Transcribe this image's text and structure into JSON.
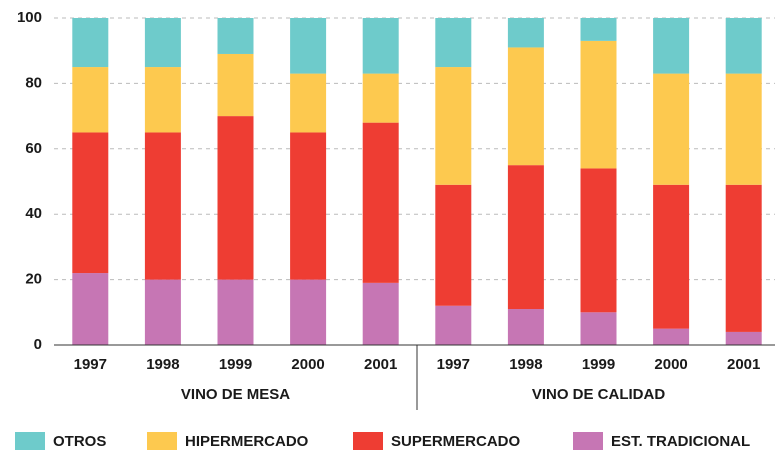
{
  "chart_data": {
    "type": "stacked_bar",
    "categories": [
      "1997",
      "1998",
      "1999",
      "2000",
      "2001",
      "1997",
      "1998",
      "1999",
      "2000",
      "2001"
    ],
    "groups": [
      "VINO DE MESA",
      "VINO DE CALIDAD"
    ],
    "series": [
      {
        "name": "EST. TRADICIONAL",
        "color": "#c676b4",
        "values": [
          22,
          20,
          20,
          20,
          19,
          12,
          11,
          10,
          5,
          4
        ]
      },
      {
        "name": "SUPERMERCADO",
        "color": "#ee3d33",
        "values": [
          43,
          45,
          50,
          45,
          49,
          37,
          44,
          44,
          44,
          45
        ]
      },
      {
        "name": "HIPERMERCADO",
        "color": "#fdc94f",
        "values": [
          20,
          20,
          19,
          18,
          15,
          36,
          36,
          39,
          34,
          34
        ]
      },
      {
        "name": "OTROS",
        "color": "#6ecbcb",
        "values": [
          15,
          15,
          11,
          17,
          17,
          15,
          9,
          7,
          17,
          17
        ]
      }
    ],
    "ylim": [
      0,
      100
    ],
    "yticks": [
      0,
      20,
      40,
      60,
      80,
      100
    ],
    "grid": true
  }
}
